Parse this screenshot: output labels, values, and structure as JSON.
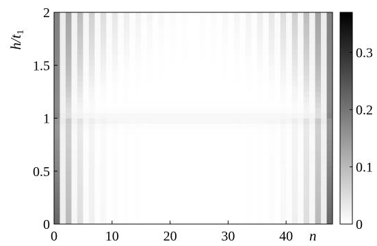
{
  "chart_data": {
    "type": "heatmap",
    "title": "",
    "xlabel": "n",
    "ylabel": "h/t1",
    "ylabel_parts": {
      "main": "h/t",
      "sub": "1"
    },
    "xlim": [
      0,
      48
    ],
    "ylim": [
      0,
      2
    ],
    "x_ticks": [
      0,
      10,
      20,
      30,
      40
    ],
    "x_tick_labels": [
      "0",
      "10",
      "20",
      "30",
      "40"
    ],
    "y_ticks": [
      0,
      0.5,
      1,
      1.5,
      2
    ],
    "y_tick_labels": [
      "0",
      "0.5",
      "1",
      "1.5",
      "2"
    ],
    "colorbar": {
      "range": [
        0,
        0.37
      ],
      "ticks": [
        0,
        0.1,
        0.2,
        0.3
      ],
      "tick_labels": [
        "0",
        "0.1",
        "0.2",
        "0.3"
      ],
      "colormap": "white-to-black"
    },
    "n_sites": 48,
    "h_rows": 40,
    "peak_value": 0.22,
    "transition_h": 1.0
  }
}
